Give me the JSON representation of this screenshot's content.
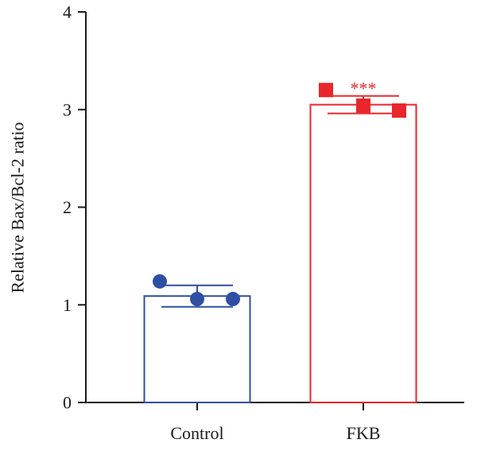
{
  "chart_data": {
    "type": "bar",
    "categories": [
      "Control",
      "FKB"
    ],
    "values": [
      1.09,
      3.05
    ],
    "error": [
      0.11,
      0.09
    ],
    "points": [
      [
        1.24,
        1.06,
        1.06
      ],
      [
        3.2,
        3.04,
        2.99
      ]
    ],
    "colors": [
      "#2e4fa3",
      "#e8262b"
    ],
    "markers": [
      "circle",
      "square"
    ],
    "significance": [
      "",
      "***"
    ],
    "ylabel": "Relative Bax/Bcl-2 ratio",
    "xlabel": "",
    "yticks": [
      "0",
      "1",
      "2",
      "3",
      "4"
    ],
    "ylim": [
      0,
      4
    ],
    "grid": false
  }
}
